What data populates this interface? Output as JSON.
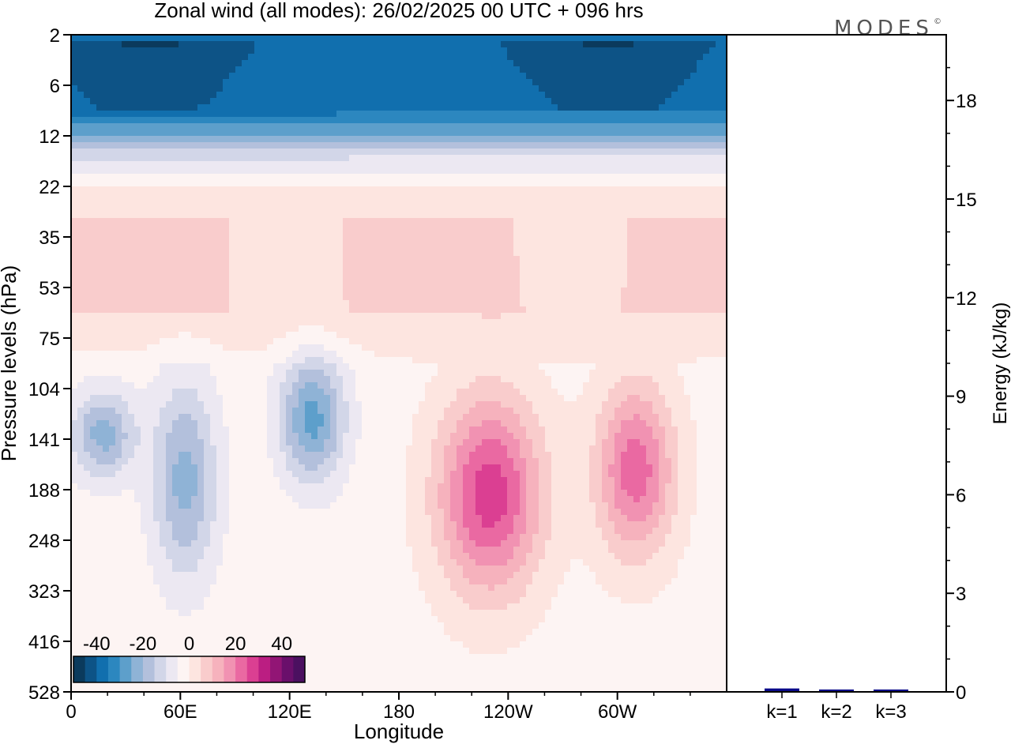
{
  "title": "Zonal wind (all modes):  26/02/2025  00 UTC  + 096 hrs",
  "logo": "MODES",
  "logo_mark": "©",
  "chart_data": [
    {
      "type": "heatmap",
      "title": "Zonal wind (all modes):  26/02/2025  00 UTC  + 096 hrs",
      "xlabel": "Longitude",
      "ylabel": "Pressure levels (hPa)",
      "x_ticks": [
        "0",
        "60E",
        "120E",
        "180",
        "120W",
        "60W"
      ],
      "x_tick_degrees": [
        0,
        60,
        120,
        180,
        240,
        300
      ],
      "xlim_degrees": [
        0,
        360
      ],
      "y_ticks": [
        "2",
        "6",
        "12",
        "22",
        "35",
        "53",
        "75",
        "104",
        "141",
        "188",
        "248",
        "323",
        "416",
        "528"
      ],
      "colorbar": {
        "tick_labels": [
          "-40",
          "-20",
          "0",
          "20",
          "40"
        ],
        "tick_values": [
          -40,
          -20,
          0,
          20,
          40
        ],
        "levels": [
          -45,
          -40,
          -35,
          -30,
          -25,
          -20,
          -15,
          -10,
          -5,
          0,
          5,
          10,
          15,
          20,
          25,
          30,
          35,
          40,
          45
        ],
        "colors": [
          "#0b3a5c",
          "#0d5386",
          "#116fae",
          "#2c87bf",
          "#5d9fcb",
          "#8fb3d6",
          "#b3c0dc",
          "#d2d6e8",
          "#ece8f2",
          "#fdf4f3",
          "#fde5e0",
          "#f9cccc",
          "#f6b2bd",
          "#f192b2",
          "#ea69a2",
          "#db3f92",
          "#bb1e82",
          "#921575",
          "#6a0f6b",
          "#4b1060"
        ]
      },
      "features": [
        {
          "label": "easterly stratospheric jet",
          "lon": [
            0,
            360
          ],
          "pressure_hPa": [
            2,
            12
          ],
          "value_ms": -40
        },
        {
          "label": "westerly band",
          "lon": [
            0,
            360
          ],
          "pressure_hPa": [
            30,
            60
          ],
          "value_ms": 8
        },
        {
          "label": "easterly core",
          "lon": [
            5,
            30
          ],
          "pressure_hPa": [
            110,
            170
          ],
          "value_ms": -20
        },
        {
          "label": "easterly core",
          "lon": [
            50,
            75
          ],
          "pressure_hPa": [
            110,
            280
          ],
          "value_ms": -20
        },
        {
          "label": "easterly core",
          "lon": [
            120,
            145
          ],
          "pressure_hPa": [
            90,
            170
          ],
          "value_ms": -25
        },
        {
          "label": "westerly jet core",
          "lon": [
            210,
            250
          ],
          "pressure_hPa": [
            120,
            300
          ],
          "value_ms": 30
        },
        {
          "label": "westerly jet core",
          "lon": [
            295,
            325
          ],
          "pressure_hPa": [
            110,
            250
          ],
          "value_ms": 25
        }
      ]
    },
    {
      "type": "bar",
      "ylabel": "Energy (kJ/kg)",
      "categories": [
        "k=1",
        "k=2",
        "k=3"
      ],
      "values": [
        0.08,
        0.04,
        0.03
      ],
      "ylim": [
        0,
        20
      ],
      "y_ticks": [
        0,
        3,
        6,
        9,
        12,
        15,
        18
      ],
      "bar_color": "#0a0a8a"
    }
  ]
}
